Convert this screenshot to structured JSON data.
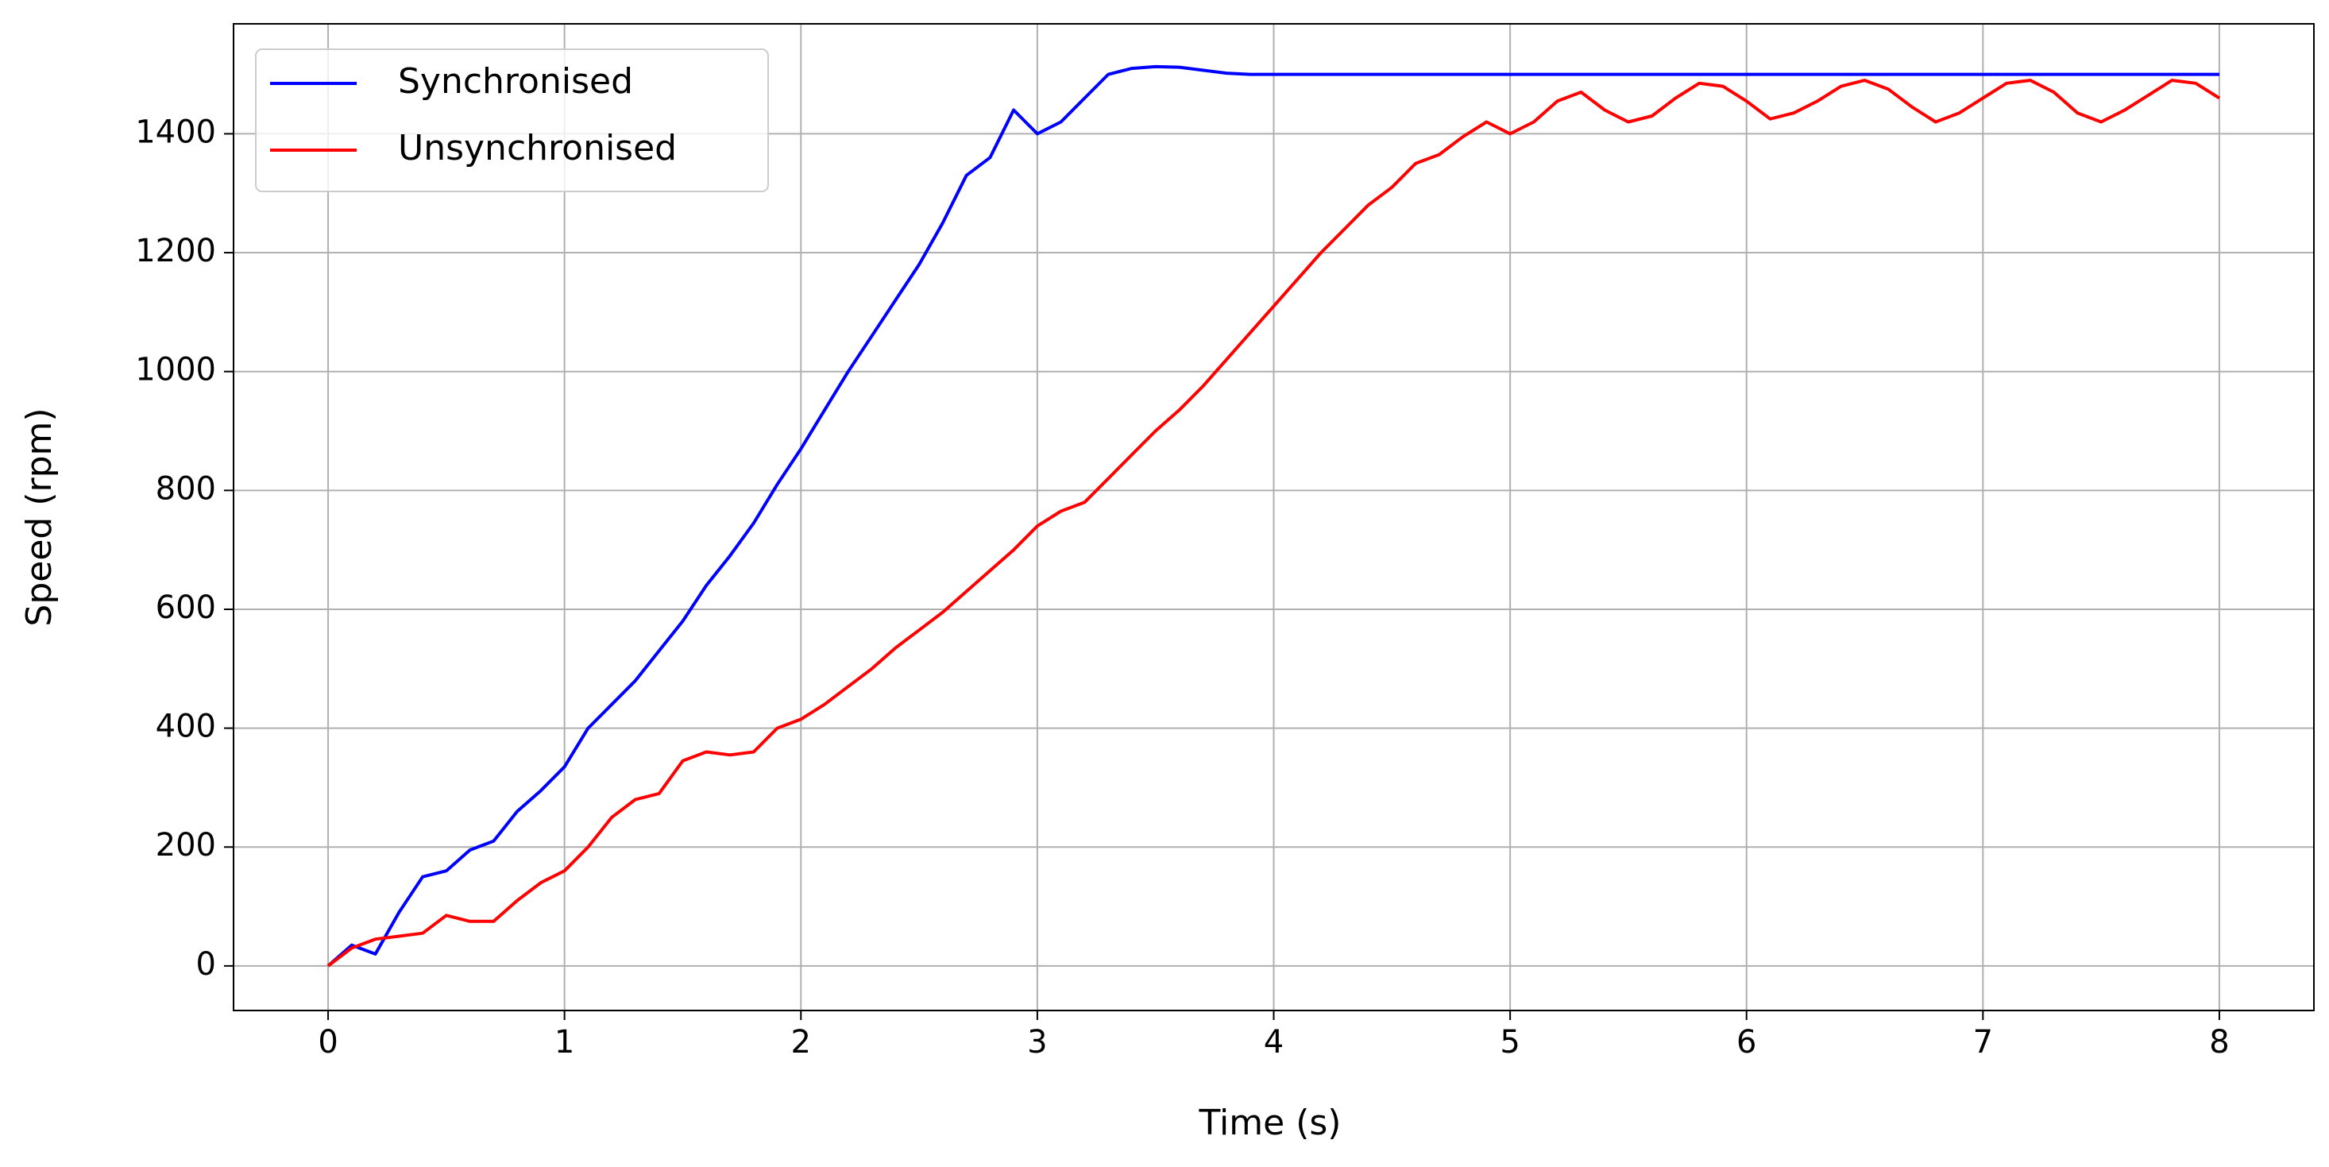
{
  "chart_data": {
    "type": "line",
    "x_label": "Time (s)",
    "y_label": "Speed (rpm)",
    "x": [
      0,
      0.1,
      0.2,
      0.3,
      0.4,
      0.5,
      0.6,
      0.7,
      0.8,
      0.9,
      1,
      1.1,
      1.2,
      1.3,
      1.4,
      1.5,
      1.6,
      1.7,
      1.8,
      1.9,
      2,
      2.1,
      2.2,
      2.3,
      2.4,
      2.5,
      2.6,
      2.7,
      2.8,
      2.9,
      3,
      3.1,
      3.2,
      3.3,
      3.4,
      3.5,
      3.6,
      3.7,
      3.8,
      3.9,
      4,
      4.1,
      4.2,
      4.3,
      4.4,
      4.5,
      4.6,
      4.7,
      4.8,
      4.9,
      5,
      5.1,
      5.2,
      5.3,
      5.4,
      5.5,
      5.6,
      5.7,
      5.8,
      5.9,
      6,
      6.1,
      6.2,
      6.3,
      6.4,
      6.5,
      6.6,
      6.7,
      6.8,
      6.9,
      7,
      7.1,
      7.2,
      7.3,
      7.4,
      7.5,
      7.6,
      7.7,
      7.8,
      7.9,
      8
    ],
    "series": [
      {
        "name": "Synchronised",
        "color": "#0000ff",
        "values": [
          0,
          35,
          20,
          90,
          150,
          160,
          195,
          210,
          260,
          295,
          335,
          400,
          440,
          480,
          530,
          580,
          640,
          690,
          745,
          810,
          870,
          935,
          1000,
          1060,
          1120,
          1180,
          1250,
          1330,
          1360,
          1440,
          1400,
          1420,
          1460,
          1500,
          1510,
          1513,
          1512,
          1507,
          1502,
          1500,
          1500,
          1500,
          1500,
          1500,
          1500,
          1500,
          1500,
          1500,
          1500,
          1500,
          1500,
          1500,
          1500,
          1500,
          1500,
          1500,
          1500,
          1500,
          1500,
          1500,
          1500,
          1500,
          1500,
          1500,
          1500,
          1500,
          1500,
          1500,
          1500,
          1500,
          1500,
          1500,
          1500,
          1500,
          1500,
          1500,
          1500,
          1500,
          1500,
          1500,
          1500
        ]
      },
      {
        "name": "Unsynchronised",
        "color": "#ff0000",
        "values": [
          0,
          30,
          45,
          50,
          55,
          85,
          75,
          75,
          110,
          140,
          160,
          200,
          250,
          280,
          290,
          345,
          360,
          355,
          360,
          400,
          415,
          440,
          470,
          500,
          535,
          565,
          595,
          630,
          665,
          700,
          740,
          765,
          780,
          820,
          860,
          900,
          935,
          975,
          1020,
          1065,
          1110,
          1155,
          1200,
          1240,
          1280,
          1310,
          1350,
          1365,
          1395,
          1420,
          1400,
          1420,
          1455,
          1470,
          1440,
          1420,
          1430,
          1460,
          1485,
          1480,
          1455,
          1425,
          1435,
          1455,
          1480,
          1490,
          1475,
          1445,
          1420,
          1435,
          1460,
          1485,
          1490,
          1470,
          1435,
          1420,
          1440,
          1465,
          1490,
          1485,
          1460
        ]
      }
    ],
    "xlim": [
      -0.4,
      8.4
    ],
    "ylim": [
      -75,
      1585
    ],
    "xticks": [
      0,
      1,
      2,
      3,
      4,
      5,
      6,
      7,
      8
    ],
    "yticks": [
      0,
      200,
      400,
      600,
      800,
      1000,
      1200,
      1400
    ],
    "grid": true,
    "legend": "upper-left"
  }
}
